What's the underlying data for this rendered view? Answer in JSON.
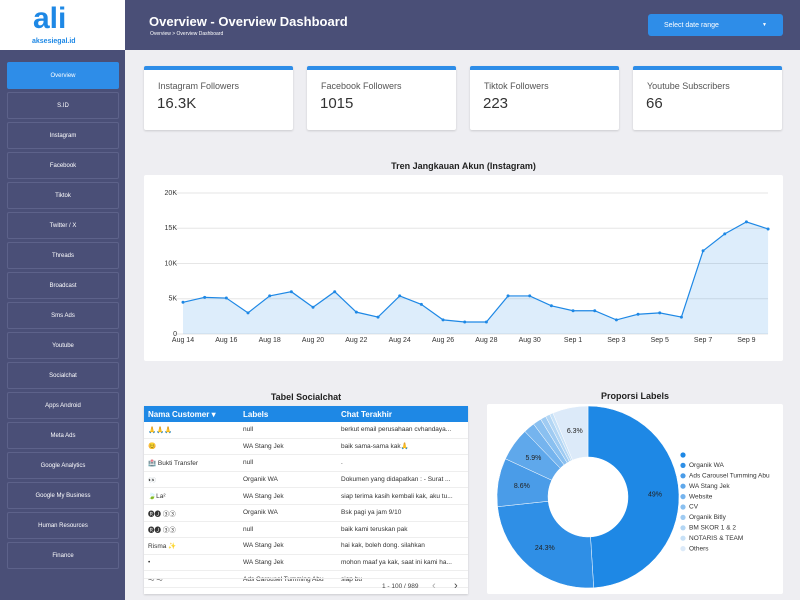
{
  "logo": {
    "brand": "ali",
    "domain": "aksesiegal.id"
  },
  "sidebar": [
    "Overview",
    "S.ID",
    "Instagram",
    "Facebook",
    "Tiktok",
    "Twitter / X",
    "Threads",
    "Broadcast",
    "Sms Ads",
    "Youtube",
    "Socialchat",
    "Apps Android",
    "Meta Ads",
    "Google Analytics",
    "Google My Business",
    "Human Resources",
    "Finance"
  ],
  "header": {
    "title": "Overview - Overview Dashboard",
    "breadcrumb": "Overview > Overview Dashboard",
    "date_button": "Select date range"
  },
  "cards": [
    {
      "label": "Instagram Followers",
      "value": "16.3K"
    },
    {
      "label": "Facebook Followers",
      "value": 1015
    },
    {
      "label": "Tiktok Followers",
      "value": 223
    },
    {
      "label": "Youtube Subscribers",
      "value": 66
    }
  ],
  "line_chart": {
    "type": "line",
    "title": "Tren Jangkauan Akun (Instagram)",
    "categories": [
      "Aug 14",
      null,
      "Aug 16",
      null,
      "Aug 18",
      null,
      "Aug 20",
      null,
      "Aug 22",
      null,
      "Aug 24",
      null,
      "Aug 26",
      null,
      "Aug 28",
      null,
      "Aug 30",
      null,
      "Sep 1",
      null,
      "Sep 3",
      null,
      "Sep 5",
      null,
      "Sep 7",
      null,
      "Sep 9",
      null
    ],
    "series": [
      {
        "color": "#1e88e5",
        "values": [
          4500,
          5200,
          5100,
          3000,
          5400,
          6000,
          3800,
          6000,
          3100,
          2400,
          5400,
          4200,
          2000,
          1700,
          1700,
          5400,
          5400,
          4000,
          3300,
          3300,
          2000,
          2800,
          3000,
          2400,
          11800,
          14200,
          15900,
          14900
        ]
      }
    ],
    "ylim": [
      0,
      20000
    ],
    "yticks": [
      0,
      {
        "value": 5000,
        "label": "5K"
      },
      {
        "value": 10000,
        "label": "10K"
      },
      {
        "value": 15000,
        "label": "15K"
      },
      {
        "value": 20000,
        "label": "20K"
      }
    ],
    "grid": true
  },
  "table": {
    "title": "Tabel Socialchat",
    "columns": [
      "Nama Customer ▾",
      "Labels",
      "Chat Terakhir"
    ],
    "rows": [
      [
        "🙏🙏🙏",
        "null",
        "berkut email perusahaan cvhandaya..."
      ],
      [
        "😊",
        "WA Stang Jek",
        "baik sama-sama kak🙏"
      ],
      [
        "🏥 Bukti Transfer",
        "null",
        "."
      ],
      [
        "👀",
        "Organik WA",
        "Dokumen yang didapatkan : - Surat ..."
      ],
      [
        "🍃La²",
        "WA Stang Jek",
        "siap terima kasih kembali kak, aku tu..."
      ],
      [
        "🅡🅙 ③③",
        "Organik WA",
        "Bsk pagi ya jam 9/10"
      ],
      [
        "🅡🅙 ③③",
        "null",
        "baik kami teruskan pak"
      ],
      [
        "Risma ✨",
        "WA Stang Jek",
        "hai kak, boleh dong. silahkan"
      ],
      [
        "•",
        "WA Stang Jek",
        "mohon maaf ya kak, saat ini kami ha..."
      ],
      [
        "～ ～",
        "Ads Carousel Tumming Abu",
        "siap bu"
      ]
    ],
    "pagination": "1 - 100 / 989"
  },
  "pie_chart": {
    "type": "pie",
    "title": "Proporsi Labels",
    "categories": [
      null,
      "Organik WA",
      "Ads Carousel Tumming Abu",
      "WA Stang Jek",
      "Website",
      "CV",
      "Organik Bitly",
      "BM SKOR 1 & 2",
      "NOTARIS & TEAM",
      "Others"
    ],
    "values": [
      49,
      24.3,
      8.6,
      5.9,
      2.0,
      1.5,
      1.0,
      0.8,
      0.6,
      6.3
    ],
    "value_labels": [
      "49%",
      "24.3%",
      "8.6%",
      "5.9%",
      null,
      null,
      null,
      null,
      null,
      "6.3%"
    ],
    "colors": [
      "#1e88e5",
      "#2f8fe6",
      "#4a9ce8",
      "#5fa8eb",
      "#75b4ee",
      "#8ac0f0",
      "#9fcbf2",
      "#b3d6f4",
      "#c7e1f7",
      "#dceaf9"
    ]
  }
}
